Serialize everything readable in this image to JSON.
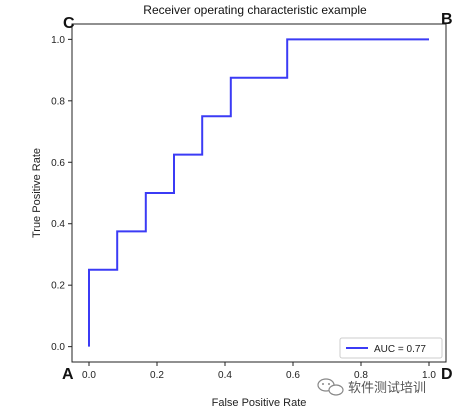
{
  "chart_data": {
    "type": "line",
    "title": "Receiver operating characteristic example",
    "xlabel": "False Positive Rate",
    "ylabel": "True Positive Rate",
    "xlim": [
      -0.05,
      1.05
    ],
    "ylim": [
      -0.05,
      1.05
    ],
    "x_ticks": [
      "0.0",
      "0.2",
      "0.4",
      "0.6",
      "0.8",
      "1.0"
    ],
    "y_ticks": [
      "0.0",
      "0.2",
      "0.4",
      "0.6",
      "0.8",
      "1.0"
    ],
    "grid": false,
    "legend_position": "lower-right",
    "series": [
      {
        "name": "AUC = 0.77",
        "color": "#3b3bf5",
        "x": [
          0.0,
          0.0,
          0.083,
          0.083,
          0.167,
          0.167,
          0.25,
          0.25,
          0.333,
          0.333,
          0.417,
          0.417,
          0.583,
          0.583,
          1.0
        ],
        "y": [
          0.0,
          0.25,
          0.25,
          0.375,
          0.375,
          0.5,
          0.5,
          0.625,
          0.625,
          0.75,
          0.75,
          0.875,
          0.875,
          1.0,
          1.0
        ]
      }
    ],
    "annotations": [
      "A",
      "B",
      "C",
      "D"
    ]
  },
  "watermark": {
    "text": "软件测试培训",
    "icon": "wechat-icon"
  }
}
